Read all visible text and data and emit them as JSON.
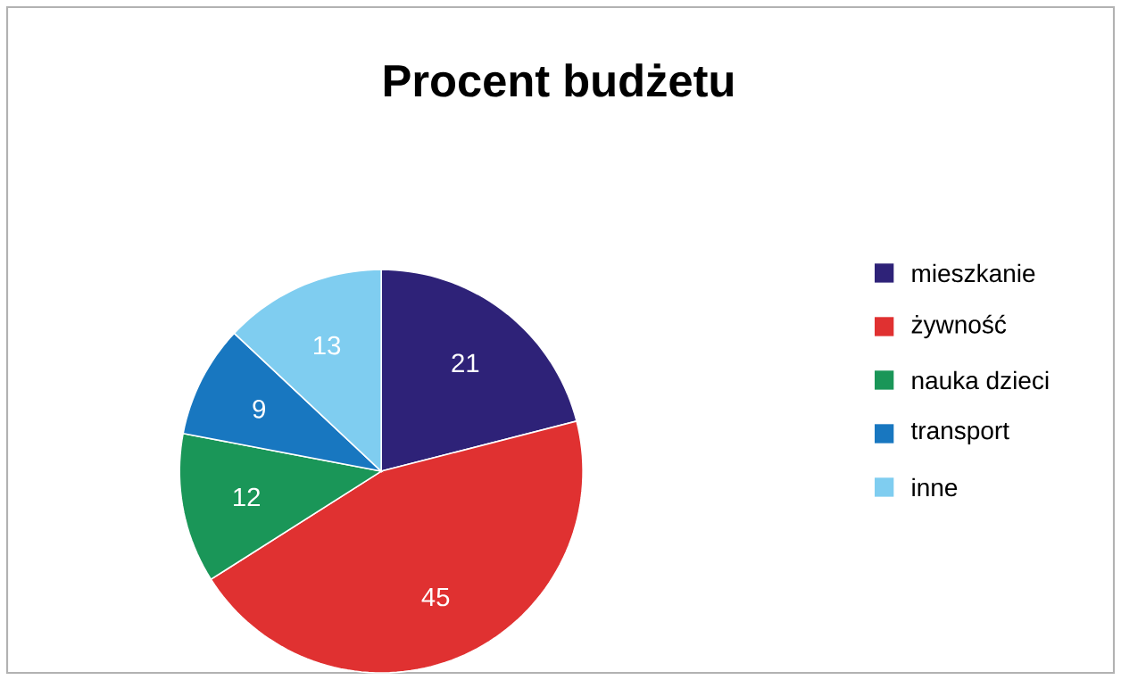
{
  "chart_data": {
    "type": "pie",
    "title": "Procent budżetu",
    "categories": [
      "mieszkanie",
      "żywność",
      "nauka dzieci",
      "transport",
      "inne"
    ],
    "values": [
      21,
      45,
      12,
      9,
      13
    ],
    "colors": [
      "#2e2278",
      "#e03131",
      "#1a9658",
      "#1877c0",
      "#7fcdf0"
    ],
    "data_labels": true,
    "legend": "right"
  }
}
